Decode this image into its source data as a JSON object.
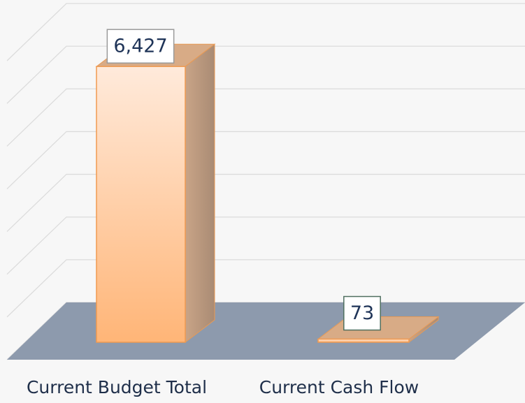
{
  "chart_data": {
    "type": "bar3d",
    "categories": [
      "Current Budget Total",
      "Current Cash Flow"
    ],
    "values": [
      6427,
      73
    ],
    "value_labels": [
      "6,427",
      "73"
    ],
    "color": "#ffb577",
    "ylim": [
      0,
      7000
    ],
    "yticks": [
      0,
      1000,
      2000,
      3000,
      4000,
      5000,
      6000,
      7000
    ],
    "grid": true
  }
}
